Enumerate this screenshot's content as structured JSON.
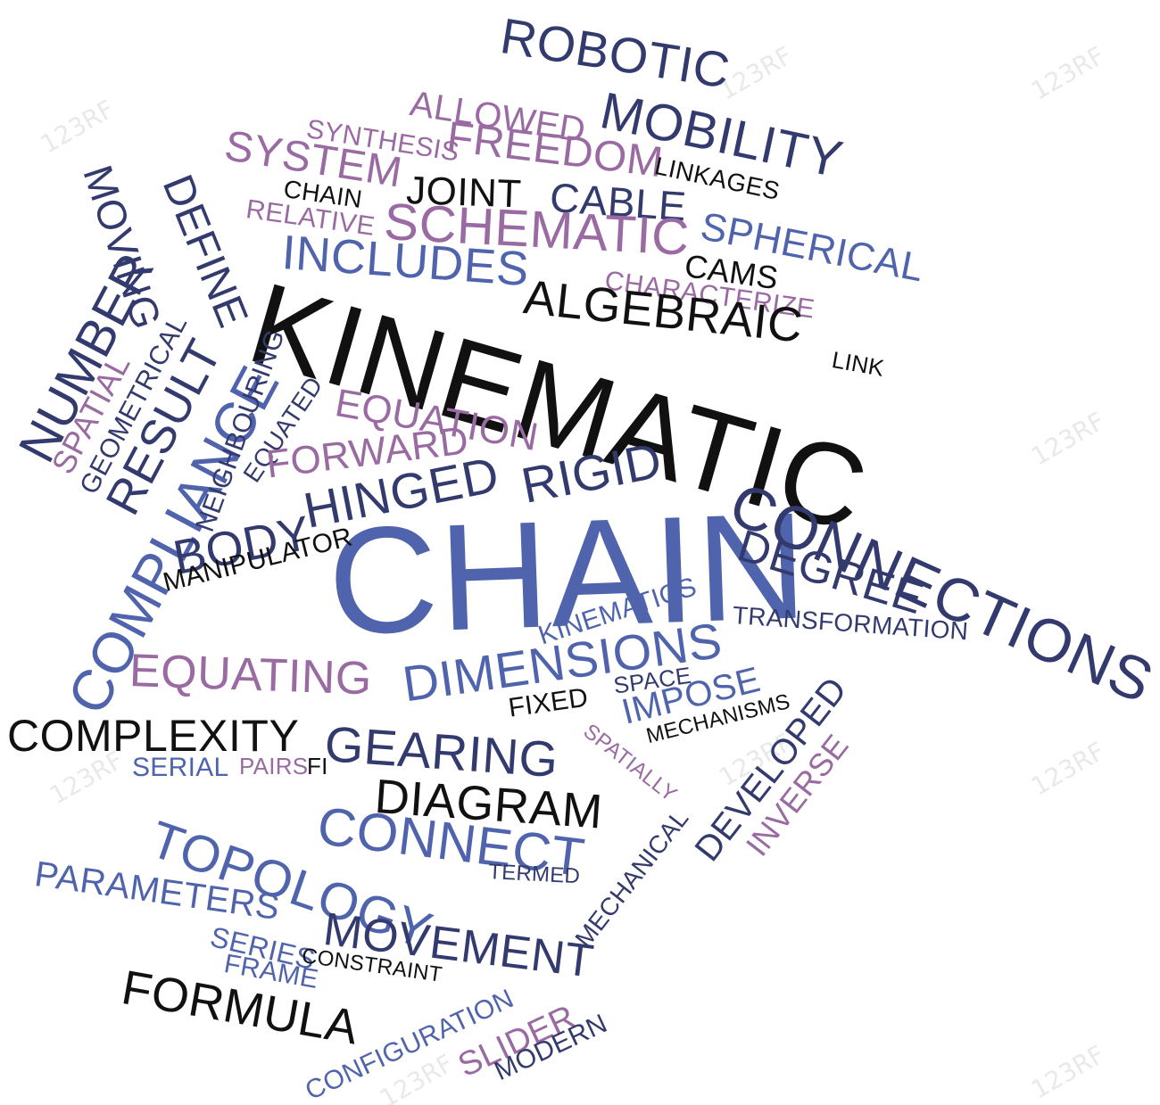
{
  "words": {
    "kinematic": "KINEMATIC",
    "chain": "CHAIN",
    "connections": "CONNECTIONS",
    "robotic": "ROBOTIC",
    "mobility": "MOBILITY",
    "allowed": "ALLOWED",
    "freedom": "FREEDOM",
    "synthesis": "SYNTHESIS",
    "system": "SYSTEM",
    "joint": "JOINT",
    "cable": "CABLE",
    "linkages": "LINKAGES",
    "chain_small": "CHAIN",
    "relative": "RELATIVE",
    "schematic": "SCHEMATIC",
    "spherical": "SPHERICAL",
    "includes": "INCLUDES",
    "cams": "CAMS",
    "characterize": "CHARACTERIZE",
    "algebraic": "ALGEBRAIC",
    "link": "LINK",
    "moving": "MOVING",
    "define": "DEFINE",
    "number": "NUMBER",
    "spatial": "SPATIAL",
    "geometrical": "GEOMETRICAL",
    "result": "RESULT",
    "compliance": "COMPLIANCE",
    "neighbouring": "NEIGHBOURING",
    "equated": "EQUATED",
    "equation": "EQUATION",
    "forward": "FORWARD",
    "hinged": "HINGED",
    "rigid": "RIGID",
    "body": "BODY",
    "degree": "DEGREE",
    "manipulator": "MANIPULATOR",
    "transformation": "TRANSFORMATION",
    "kinematics": "KINEMATICS",
    "equating": "EQUATING",
    "dimensions": "DIMENSIONS",
    "space": "SPACE",
    "impose": "IMPOSE",
    "fixed": "FIXED",
    "mechanisms": "MECHANISMS",
    "complexity": "COMPLEXITY",
    "gearing": "GEARING",
    "spatially": "SPATIALLY",
    "developed": "DEVELOPED",
    "inverse": "INVERSE",
    "serial": "SERIAL",
    "pairs": "PAIRS",
    "fi": "FI",
    "diagram": "DIAGRAM",
    "mechanical": "MECHANICAL",
    "connect": "CONNECT",
    "topology": "TOPOLOGY",
    "termed": "TERMED",
    "parameters": "PARAMETERS",
    "movement": "MOVEMENT",
    "series": "SERIES",
    "constraint": "CONSTRAINT",
    "frame": "FRAME",
    "formula": "FORMULA",
    "configuration": "CONFIGURATION",
    "slider": "SLIDER",
    "modern": "MODERN"
  },
  "watermark": "123RF",
  "colors": {
    "black": "#111111",
    "navy": "#333a6e",
    "blue": "#4f64ad",
    "purple": "#9a6aa2",
    "background": "#ffffff"
  }
}
